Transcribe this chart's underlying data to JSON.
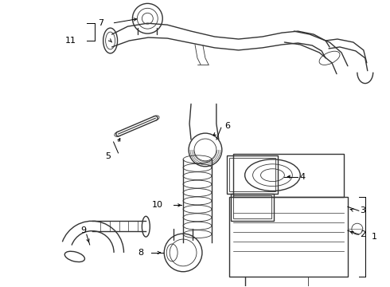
{
  "bg_color": "#ffffff",
  "line_color": "#333333",
  "label_color": "#000000",
  "fig_width": 4.9,
  "fig_height": 3.6,
  "dpi": 100
}
